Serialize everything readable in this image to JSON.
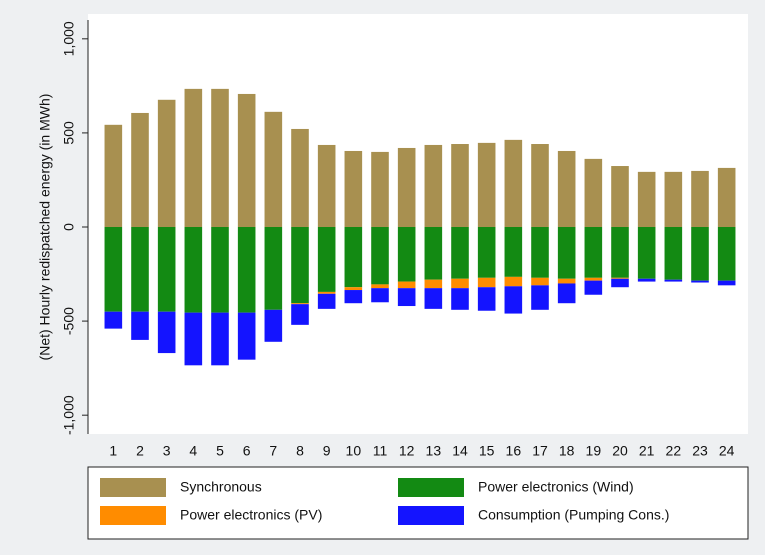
{
  "chart_data": {
    "type": "stacked-bar",
    "y_label": "(Net) Hourly redispatched energy (in MWh)",
    "categories": [
      "1",
      "2",
      "3",
      "4",
      "5",
      "6",
      "7",
      "8",
      "9",
      "10",
      "11",
      "12",
      "13",
      "14",
      "15",
      "16",
      "17",
      "18",
      "19",
      "20",
      "21",
      "22",
      "23",
      "24"
    ],
    "series": [
      {
        "name": "Synchronous",
        "color": "#a89050",
        "values": [
          543,
          606,
          676,
          734,
          734,
          707,
          612,
          521,
          436,
          404,
          399,
          420,
          436,
          441,
          447,
          463,
          441,
          404,
          362,
          324,
          293,
          293,
          298,
          314
        ]
      },
      {
        "name": "Power electronics (Wind)",
        "color": "#138a13",
        "values": [
          -450,
          -450,
          -450,
          -455,
          -455,
          -455,
          -440,
          -405,
          -345,
          -320,
          -305,
          -290,
          -280,
          -275,
          -270,
          -265,
          -270,
          -275,
          -270,
          -270,
          -275,
          -280,
          -285,
          -285
        ]
      },
      {
        "name": "Power electronics (PV)",
        "color": "#ff8c00",
        "values": [
          0,
          0,
          0,
          0,
          0,
          0,
          0,
          -5,
          -10,
          -15,
          -20,
          -35,
          -45,
          -50,
          -50,
          -50,
          -40,
          -25,
          -15,
          -5,
          0,
          0,
          0,
          0
        ]
      },
      {
        "name": "Consumption (Pumping Cons.)",
        "color": "#1414ff",
        "values": [
          -90,
          -150,
          -220,
          -280,
          -280,
          -250,
          -170,
          -110,
          -80,
          -70,
          -75,
          -95,
          -110,
          -115,
          -125,
          -145,
          -130,
          -105,
          -75,
          -45,
          -15,
          -10,
          -10,
          -25
        ]
      }
    ],
    "ylim": [
      -1100,
      1100
    ],
    "yticks": [
      {
        "value": 1000,
        "label": "1,000"
      },
      500,
      0,
      -500,
      {
        "value": -1000,
        "label": "-1,000"
      }
    ],
    "grid": false
  }
}
